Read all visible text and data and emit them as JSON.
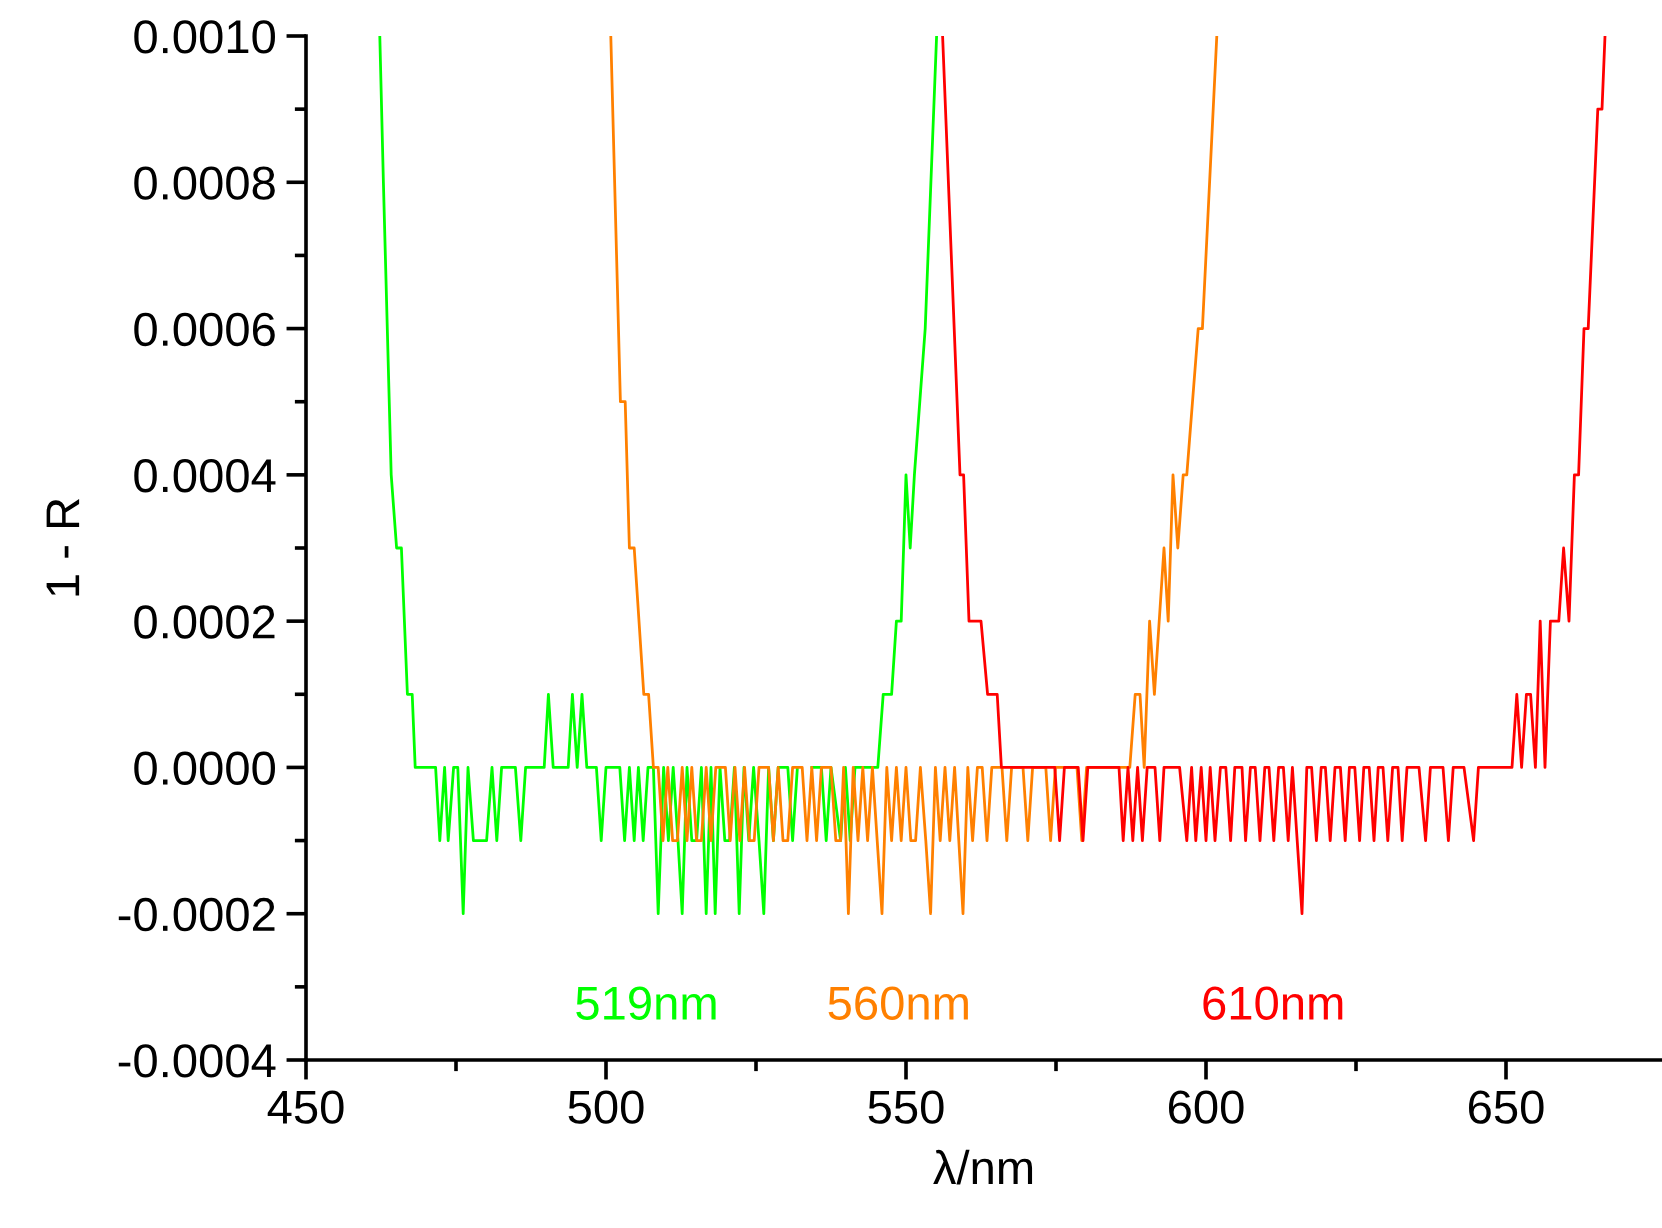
{
  "chart_data": {
    "type": "line",
    "xlabel": "λ/nm",
    "ylabel": "1 - R",
    "xlim": [
      450,
      676
    ],
    "xticks": [
      450,
      {
        "value": 475,
        "label": null
      },
      500,
      {
        "value": 525,
        "label": null
      },
      550,
      {
        "value": 575,
        "label": null
      },
      600,
      {
        "value": 625,
        "label": null
      },
      650
    ],
    "ylim": [
      -0.0004,
      0.001
    ],
    "yticks": [
      {
        "value": -0.0004,
        "label": "-0.0004"
      },
      {
        "value": -0.0003,
        "label": null
      },
      {
        "value": -0.0002,
        "label": "-0.0002"
      },
      {
        "value": -0.0001,
        "label": null
      },
      {
        "value": 0,
        "label": "0.0000"
      },
      {
        "value": 0.0001,
        "label": null
      },
      {
        "value": 0.0002,
        "label": "0.0002"
      },
      {
        "value": 0.0003,
        "label": null
      },
      {
        "value": 0.0004,
        "label": "0.0004"
      },
      {
        "value": 0.0005,
        "label": null
      },
      {
        "value": 0.0006,
        "label": "0.0006"
      },
      {
        "value": 0.0007,
        "label": null
      },
      {
        "value": 0.0008,
        "label": "0.0008"
      },
      {
        "value": 0.0009,
        "label": null
      },
      {
        "value": 0.001,
        "label": "0.0010"
      }
    ],
    "grid": false,
    "legend": false,
    "marker": "none",
    "line_style": "solid",
    "series": [
      {
        "name": "519nm",
        "color": "#00ff00",
        "x": [
          462.3,
          462.9,
          464.2,
          465.1,
          465.9,
          466.9,
          467.7,
          468.2,
          471.6,
          472.3,
          473.1,
          473.7,
          474.6,
          475.3,
          476.2,
          477.0,
          477.9,
          480.1,
          481.0,
          481.8,
          482.6,
          484.9,
          485.8,
          486.6,
          489.7,
          490.4,
          491.2,
          493.7,
          494.4,
          495.2,
          496.0,
          496.8,
          498.4,
          499.2,
          500.0,
          502.3,
          503.1,
          503.9,
          504.7,
          505.4,
          506.2,
          507.0,
          507.9,
          508.7,
          509.6,
          510.4,
          511.2,
          512.0,
          512.7,
          513.5,
          514.3,
          515.1,
          515.9,
          516.7,
          517.5,
          518.2,
          519.0,
          519.8,
          520.6,
          521.4,
          522.2,
          523.0,
          523.8,
          524.6,
          525.5,
          526.3,
          527.1,
          527.9,
          528.7,
          530.3,
          531.1,
          531.9,
          533.5,
          534.3,
          535.9,
          536.7,
          537.5,
          539.1,
          539.9,
          540.7,
          541.5,
          545.3,
          546.2,
          547.6,
          548.4,
          549.2,
          550.0,
          550.7,
          551.4,
          553.2,
          555.1
        ],
        "values": [
          0.001,
          0.0008,
          0.0004,
          0.0003,
          0.0003,
          0.0001,
          0.0001,
          0,
          0,
          -0.0001,
          0,
          -0.0001,
          0,
          0,
          -0.0002,
          0,
          -0.0001,
          -0.0001,
          0,
          -0.0001,
          0,
          0,
          -0.0001,
          0,
          0,
          0.0001,
          0,
          0,
          0.0001,
          0,
          0.0001,
          0,
          0,
          -0.0001,
          0,
          0,
          -0.0001,
          0,
          -0.0001,
          0,
          -0.0001,
          0,
          0,
          -0.0002,
          0,
          -0.0001,
          0,
          -0.0001,
          -0.0002,
          0,
          -0.0001,
          -0.0001,
          0,
          -0.0002,
          0,
          -0.0002,
          0,
          -0.0001,
          -0.0001,
          0,
          -0.0002,
          0,
          -0.0001,
          0,
          -0.0001,
          -0.0002,
          0,
          -0.0001,
          0,
          0,
          -0.0001,
          0,
          null,
          0,
          0,
          -0.0001,
          0,
          -0.0001,
          0,
          -0.0001,
          0,
          0,
          0.0001,
          0.0001,
          0.0002,
          0.0002,
          0.0004,
          0.0003,
          0.0004,
          0.0006,
          0.001
        ]
      },
      {
        "name": "560nm",
        "color": "#ff8000",
        "x": [
          500.8,
          502.4,
          503.2,
          503.9,
          504.7,
          506.3,
          507.1,
          507.9,
          508.7,
          509.5,
          510.3,
          511.1,
          511.9,
          512.7,
          513.5,
          514.3,
          515.1,
          515.9,
          516.7,
          517.5,
          518.3,
          519.9,
          520.7,
          521.5,
          522.3,
          523.1,
          523.9,
          524.7,
          525.5,
          527.1,
          527.9,
          528.7,
          529.5,
          530.3,
          531.1,
          532.7,
          533.5,
          534.3,
          535.1,
          535.9,
          537.5,
          538.3,
          539.1,
          539.6,
          540.4,
          541.2,
          542.0,
          542.8,
          543.6,
          544.4,
          545.2,
          546.0,
          546.8,
          547.6,
          548.4,
          549.2,
          550.0,
          550.8,
          551.6,
          552.4,
          553.3,
          554.1,
          554.9,
          555.7,
          556.5,
          557.3,
          558.1,
          558.8,
          559.5,
          560.3,
          561.1,
          561.9,
          562.7,
          563.5,
          564.3,
          566.0,
          566.8,
          567.6,
          569.5,
          570.3,
          571.1,
          573.3,
          574.1,
          574.9,
          578.5,
          579.3,
          580.1,
          587.3,
          588.2,
          589.0,
          589.7,
          590.6,
          591.4,
          593.0,
          593.7,
          594.5,
          595.3,
          596.2,
          596.8,
          598.7,
          599.4,
          601.8
        ],
        "values": [
          0.001,
          0.0005,
          0.0005,
          0.0003,
          0.0003,
          0.0001,
          0.0001,
          0,
          0,
          -0.0001,
          0,
          -0.0001,
          -0.0001,
          0,
          -0.0001,
          0,
          -0.0001,
          -0.0001,
          0,
          -0.0001,
          0,
          0,
          -0.0001,
          0,
          -0.0001,
          0,
          -0.0001,
          -0.0001,
          0,
          0,
          -0.0001,
          0,
          -0.0001,
          -0.0001,
          0,
          0,
          -0.0001,
          0,
          -0.0001,
          0,
          0,
          -0.0001,
          -0.0001,
          0,
          -0.0002,
          0,
          -0.0001,
          0,
          -0.0001,
          0,
          -0.0001,
          -0.0002,
          0,
          -0.0001,
          0,
          -0.0001,
          0,
          -0.0001,
          -0.0001,
          0,
          -0.0001,
          -0.0002,
          0,
          -0.0001,
          0,
          -0.0001,
          0,
          -0.0001,
          -0.0002,
          0,
          -0.0001,
          0,
          0,
          -0.0001,
          0,
          0,
          -0.0001,
          0,
          0,
          -0.0001,
          0,
          0,
          -0.0001,
          0,
          0,
          -0.0001,
          0,
          0,
          0.0001,
          0.0001,
          0,
          0.0002,
          0.0001,
          0.0003,
          0.0002,
          0.0004,
          0.0003,
          0.0004,
          0.0004,
          0.0006,
          0.0006,
          0.001
        ]
      },
      {
        "name": "610nm",
        "color": "#ff0000",
        "x": [
          556.1,
          559.0,
          559.6,
          560.5,
          562.5,
          563.6,
          565.2,
          565.9,
          574.8,
          575.6,
          576.4,
          578.7,
          579.5,
          580.3,
          585.5,
          586.2,
          587.0,
          587.8,
          588.6,
          589.4,
          590.2,
          591.5,
          592.3,
          593.0,
          595.6,
          596.8,
          597.6,
          598.3,
          599.2,
          600.0,
          600.7,
          601.5,
          602.4,
          603.3,
          604.1,
          604.8,
          606.0,
          606.6,
          607.4,
          608.2,
          609.0,
          609.8,
          610.5,
          611.3,
          612.1,
          612.9,
          613.7,
          614.4,
          615.2,
          616.0,
          616.8,
          617.6,
          618.4,
          619.2,
          619.9,
          620.7,
          621.5,
          622.4,
          623.2,
          623.9,
          624.8,
          625.6,
          626.3,
          627.2,
          628.0,
          628.7,
          629.5,
          630.3,
          631.1,
          632.0,
          632.7,
          633.5,
          635.5,
          636.6,
          637.4,
          639.5,
          640.4,
          641.2,
          643.0,
          644.6,
          645.4,
          651.0,
          651.8,
          652.6,
          653.4,
          654.1,
          654.9,
          655.7,
          656.5,
          657.4,
          658.8,
          659.6,
          660.5,
          661.4,
          662.1,
          663.0,
          663.7,
          665.3,
          666.0,
          666.5
        ],
        "values": [
          0.001,
          0.0004,
          0.0004,
          0.0002,
          0.0002,
          0.0001,
          0.0001,
          0,
          0,
          -0.0001,
          0,
          0,
          -0.0001,
          0,
          0,
          -0.0001,
          0,
          -0.0001,
          0,
          -0.0001,
          0,
          0,
          -0.0001,
          0,
          0,
          -0.0001,
          0,
          -0.0001,
          0,
          -0.0001,
          0,
          -0.0001,
          0,
          0,
          -0.0001,
          0,
          0,
          -0.0001,
          0,
          0,
          -0.0001,
          0,
          0,
          -0.0001,
          0,
          0,
          -0.0001,
          0,
          -0.0001,
          -0.0002,
          0,
          0,
          -0.0001,
          0,
          0,
          -0.0001,
          0,
          0,
          -0.0001,
          0,
          0,
          -0.0001,
          0,
          0,
          -0.0001,
          0,
          0,
          -0.0001,
          0,
          0,
          -0.0001,
          0,
          0,
          -0.0001,
          0,
          0,
          -0.0001,
          0,
          0,
          -0.0001,
          0,
          0,
          0.0001,
          0,
          0.0001,
          0.0001,
          0,
          0.0002,
          0,
          0.0002,
          0.0002,
          0.0003,
          0.0002,
          0.0004,
          0.0004,
          0.0006,
          0.0006,
          0.0009,
          0.0009,
          0.001
        ]
      }
    ]
  }
}
